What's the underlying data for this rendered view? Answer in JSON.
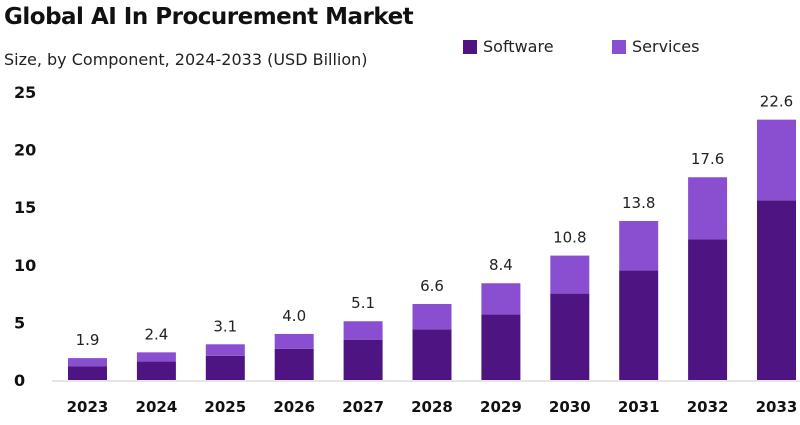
{
  "chart_data": {
    "type": "bar",
    "stacked": true,
    "title": "Global AI In Procurement Market",
    "subtitle": "Size, by Component, 2024-2033 (USD Billion)",
    "categories": [
      "2023",
      "2024",
      "2025",
      "2026",
      "2027",
      "2028",
      "2029",
      "2030",
      "2031",
      "2032",
      "2033"
    ],
    "series": [
      {
        "name": "Software",
        "color": "#4e1582",
        "values": [
          1.2,
          1.6,
          2.1,
          2.7,
          3.5,
          4.4,
          5.7,
          7.5,
          9.5,
          12.2,
          15.6
        ]
      },
      {
        "name": "Services",
        "color": "#8a4fd0",
        "values": [
          0.7,
          0.8,
          1.0,
          1.3,
          1.6,
          2.2,
          2.7,
          3.3,
          4.3,
          5.4,
          7.0
        ]
      }
    ],
    "totals": [
      "1.9",
      "2.4",
      "3.1",
      "4.0",
      "5.1",
      "6.6",
      "8.4",
      "10.8",
      "13.8",
      "17.6",
      "22.6"
    ],
    "yticks": [
      "0",
      "5",
      "10",
      "15",
      "20",
      "25"
    ],
    "ylim": [
      0,
      25
    ],
    "grid": false,
    "legend_position": "top-right"
  }
}
